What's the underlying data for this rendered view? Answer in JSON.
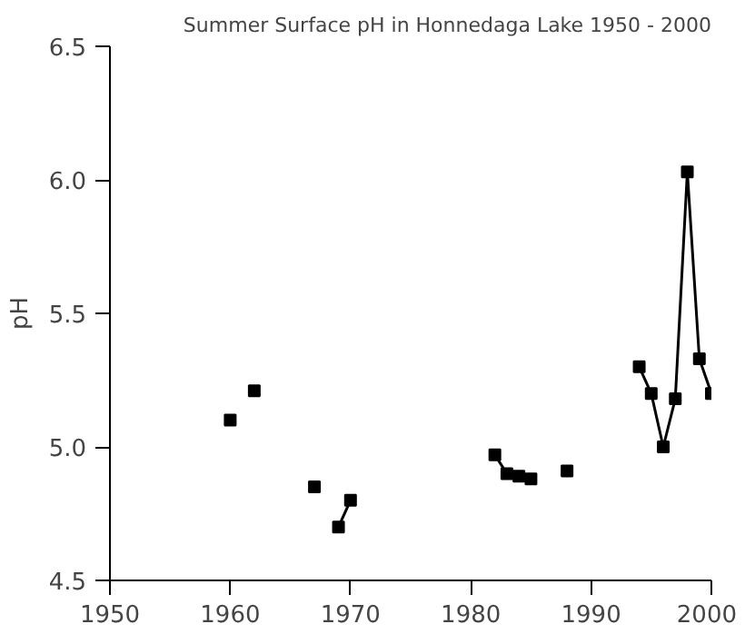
{
  "chart_data": {
    "type": "line",
    "title": "Summer Surface pH in Honnedaga Lake 1950 - 2000",
    "ylabel": "pH",
    "x": [
      1960,
      1961,
      1962,
      1963,
      1967,
      1968,
      1969,
      1970,
      1971,
      1982,
      1983,
      1984,
      1985,
      1986,
      1988,
      1989,
      1994,
      1995,
      1996,
      1997,
      1998,
      1999,
      2000
    ],
    "series": [
      {
        "color": "#000000",
        "values": [
          5.1,
          null,
          5.21,
          null,
          4.85,
          null,
          4.7,
          4.8,
          null,
          4.97,
          4.9,
          4.89,
          4.88,
          null,
          4.91,
          null,
          5.3,
          5.2,
          5.0,
          5.18,
          6.03,
          5.33,
          5.2
        ]
      }
    ],
    "xlim": [
      1950,
      2000
    ],
    "xticks": [
      1950,
      1960,
      1970,
      1980,
      1990,
      2000
    ],
    "ylim": [
      4.5,
      6.5
    ],
    "yticks": [
      {
        "value": 4.5,
        "label": "4.5"
      },
      {
        "value": 5,
        "label": "5.0"
      },
      {
        "value": 5.5,
        "label": "5.5"
      },
      {
        "value": 6,
        "label": "6.0"
      },
      {
        "value": 6.5,
        "label": "6.5"
      }
    ],
    "grid": false,
    "marker": "square",
    "line_style": "solid"
  }
}
